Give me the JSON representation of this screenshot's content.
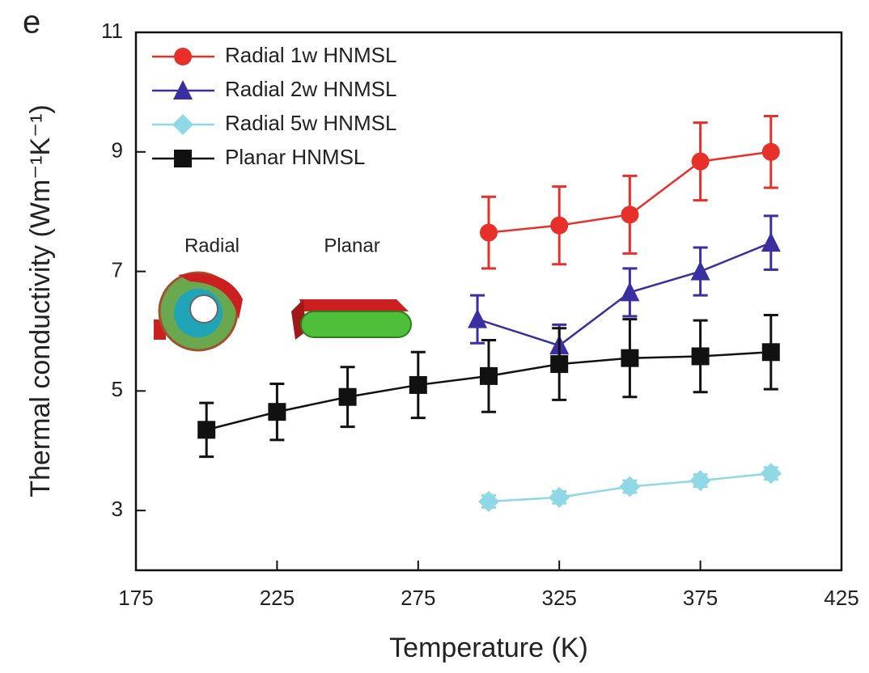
{
  "chart_data": {
    "type": "line",
    "panel_label": "e",
    "x_label": "Temperature (K)",
    "y_label": "Thermal conductivity (Wm⁻¹K⁻¹)",
    "xlim": [
      175,
      425
    ],
    "ylim": [
      2,
      11
    ],
    "xticks": [
      175,
      225,
      275,
      325,
      375,
      425
    ],
    "yticks": [
      3,
      5,
      7,
      9,
      11
    ],
    "legend": "upper left",
    "inset_labels": [
      "Radial",
      "Planar"
    ],
    "series": [
      {
        "name": "Radial 1w HNMSL",
        "color": "#e8302a",
        "marker": "circle",
        "x": [
          300,
          325,
          350,
          375,
          400
        ],
        "values": [
          7.65,
          7.77,
          7.95,
          8.84,
          9.0
        ],
        "errors": [
          0.6,
          0.65,
          0.65,
          0.65,
          0.6
        ]
      },
      {
        "name": "Radial 2w HNMSL",
        "color": "#3a2fa0",
        "marker": "triangle",
        "x": [
          296,
          325,
          350,
          375,
          400
        ],
        "values": [
          6.2,
          5.76,
          6.65,
          7.0,
          7.48
        ],
        "errors": [
          0.4,
          0.35,
          0.4,
          0.4,
          0.45
        ]
      },
      {
        "name": "Radial 5w HNMSL",
        "color": "#8fd8e6",
        "marker": "diamond",
        "x": [
          300,
          325,
          350,
          375,
          400
        ],
        "values": [
          3.15,
          3.22,
          3.4,
          3.5,
          3.62
        ],
        "errors": [
          0.1,
          0.1,
          0.1,
          0.1,
          0.1
        ]
      },
      {
        "name": "Planar HNMSL",
        "color": "#111111",
        "marker": "square",
        "x": [
          200,
          225,
          250,
          275,
          300,
          325,
          350,
          375,
          400
        ],
        "values": [
          4.35,
          4.65,
          4.9,
          5.1,
          5.25,
          5.45,
          5.55,
          5.58,
          5.65
        ],
        "errors": [
          0.45,
          0.47,
          0.5,
          0.55,
          0.6,
          0.6,
          0.65,
          0.6,
          0.62
        ]
      }
    ]
  }
}
